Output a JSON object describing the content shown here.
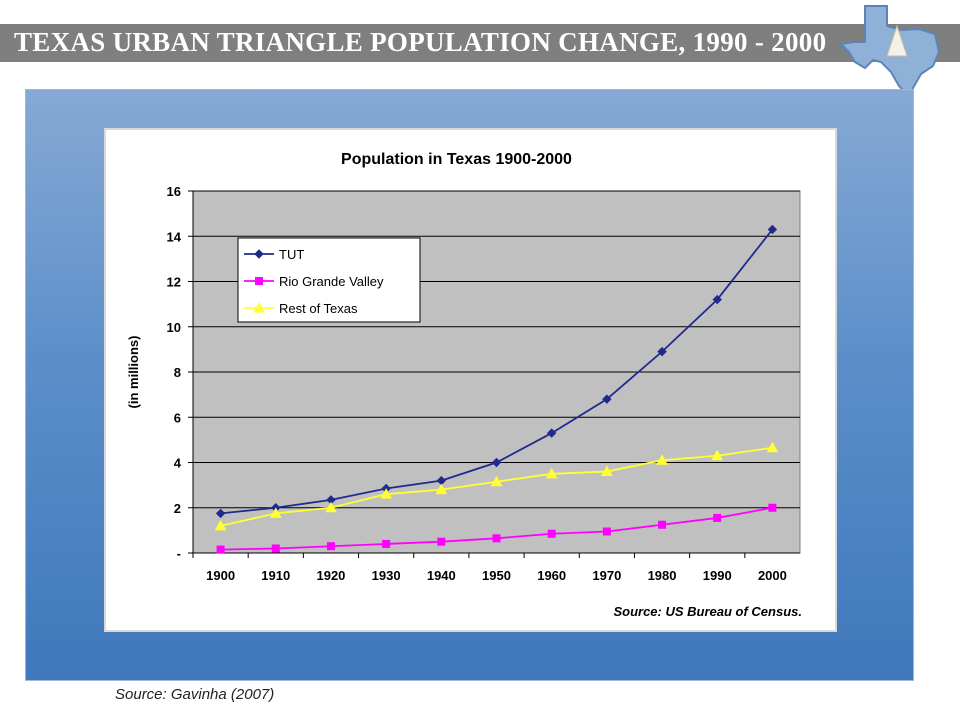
{
  "slide": {
    "title": "Texas Urban Triangle Population Change, 1990 - 2000",
    "source_note": "Source:  Gavinha (2007)"
  },
  "colors": {
    "title_bar": "#7f7f7f",
    "panel_top": "#86a9d4",
    "panel_bottom": "#3f78bb",
    "plot_area": "#c0c0c0",
    "tut": "#1f2a8c",
    "rio": "#ff00ff",
    "rest": "#ffff33"
  },
  "logo": {
    "icon": "texas-map-triangle-icon"
  },
  "chart_data": {
    "type": "line",
    "title": "Population in Texas 1900-2000",
    "xlabel": "",
    "ylabel": "(in millions)",
    "ylim": [
      0,
      16
    ],
    "yticks": [
      "-",
      "2",
      "4",
      "6",
      "8",
      "10",
      "12",
      "14",
      "16"
    ],
    "grid": true,
    "legend_position": "top-left",
    "categories": [
      "1900",
      "1910",
      "1920",
      "1930",
      "1940",
      "1950",
      "1960",
      "1970",
      "1980",
      "1990",
      "2000"
    ],
    "series": [
      {
        "name": "TUT",
        "marker": "diamond",
        "color": "#1f2a8c",
        "values": [
          1.75,
          2.0,
          2.35,
          2.85,
          3.2,
          4.0,
          5.3,
          6.8,
          8.9,
          11.2,
          14.3
        ]
      },
      {
        "name": "Rio Grande Valley",
        "marker": "square",
        "color": "#ff00ff",
        "values": [
          0.15,
          0.2,
          0.3,
          0.4,
          0.5,
          0.65,
          0.85,
          0.95,
          1.25,
          1.55,
          2.0
        ]
      },
      {
        "name": "Rest of Texas",
        "marker": "triangle",
        "color": "#ffff33",
        "values": [
          1.2,
          1.75,
          2.0,
          2.6,
          2.8,
          3.15,
          3.5,
          3.6,
          4.1,
          4.3,
          4.65
        ]
      }
    ],
    "annotation": "Source:  US Bureau of Census."
  }
}
